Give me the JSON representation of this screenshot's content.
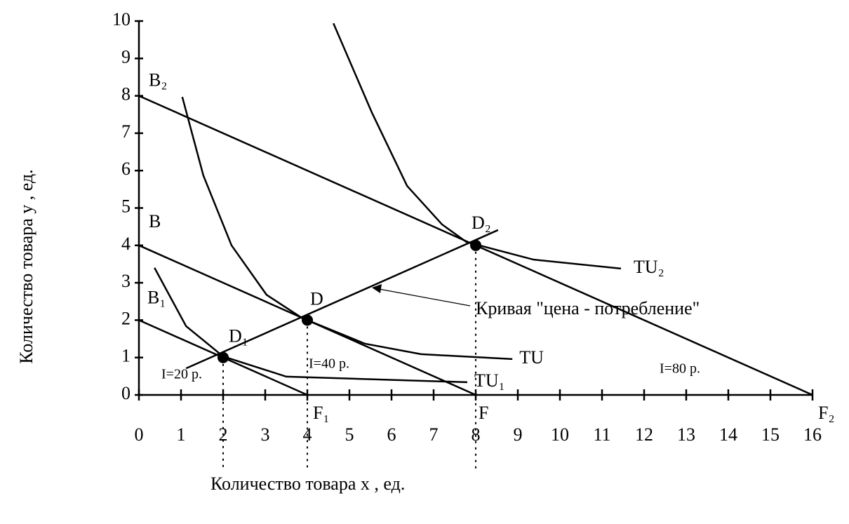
{
  "chart_data": {
    "type": "line",
    "x_label": "Количество товара x , ед.",
    "y_label": "Количество товара y , ед.",
    "xlim": [
      0,
      16
    ],
    "ylim": [
      0,
      10
    ],
    "xticks": [
      0,
      1,
      2,
      3,
      4,
      5,
      6,
      7,
      8,
      9,
      10,
      11,
      12,
      13,
      14,
      15,
      16
    ],
    "yticks": [
      0,
      1,
      2,
      3,
      4,
      5,
      6,
      7,
      8,
      9,
      10
    ],
    "color": "#000000",
    "budget_lines": [
      {
        "name": "I=20 р.",
        "start_label": "B₁",
        "end_label": "F₁",
        "x": [
          0,
          4
        ],
        "y": [
          2,
          0
        ]
      },
      {
        "name": "I=40 р.",
        "start_label": "B",
        "end_label": "F",
        "x": [
          0,
          8
        ],
        "y": [
          4,
          0
        ]
      },
      {
        "name": "I=80 р.",
        "start_label": "B₂",
        "end_label": "F₂",
        "x": [
          0,
          16
        ],
        "y": [
          8,
          0
        ]
      }
    ],
    "series": [
      {
        "name": "TU₁",
        "x": [
          0.37,
          1.12,
          2,
          3.5,
          7.8
        ],
        "y": [
          3.4,
          1.84,
          1.03,
          0.49,
          0.34
        ]
      },
      {
        "name": "TU",
        "x": [
          1.03,
          1.53,
          2.2,
          3.03,
          3.87,
          5.37,
          6.7,
          8.87
        ],
        "y": [
          7.97,
          5.87,
          4.0,
          2.68,
          2.06,
          1.37,
          1.09,
          0.96
        ]
      },
      {
        "name": "TU₂",
        "x": [
          4.62,
          5.53,
          6.37,
          7.2,
          7.78,
          9.37,
          11.45
        ],
        "y": [
          9.94,
          7.56,
          5.59,
          4.56,
          4.09,
          3.62,
          3.38
        ]
      },
      {
        "name": "Кривая \"цена - потребление\"",
        "x": [
          1.12,
          8.53
        ],
        "y": [
          0.71,
          4.41
        ]
      }
    ],
    "points": {
      "labels": [
        "D₁",
        "D",
        "D₂"
      ],
      "x": [
        2,
        4,
        8
      ],
      "y": [
        1,
        2,
        4
      ]
    }
  }
}
